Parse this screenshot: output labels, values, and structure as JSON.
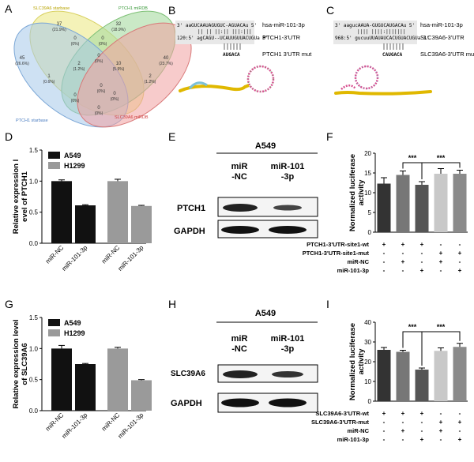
{
  "panel_letters": [
    "A",
    "B",
    "C",
    "D",
    "E",
    "F",
    "G",
    "H",
    "I"
  ],
  "venn": {
    "labels": [
      "SLC39A6 starbase",
      "PTCH1 miRDB",
      "PTCH1 starbase",
      "SLC39A6 miRDB"
    ],
    "regions": [
      {
        "n": "37",
        "p": "(21.9%)"
      },
      {
        "n": "32",
        "p": "(18.9%)"
      },
      {
        "n": "45",
        "p": "(26.6%)"
      },
      {
        "n": "40",
        "p": "(23.7%)"
      },
      {
        "n": "0",
        "p": "(0%)"
      },
      {
        "n": "0",
        "p": "(0%)"
      },
      {
        "n": "1",
        "p": "(0.6%)"
      },
      {
        "n": "2",
        "p": "(1.2%)"
      },
      {
        "n": "2",
        "p": "(1.2%)"
      },
      {
        "n": "10",
        "p": "(5.9%)"
      },
      {
        "n": "0",
        "p": "(0%)"
      },
      {
        "n": "0",
        "p": "(0%)"
      },
      {
        "n": "0",
        "p": "(0%)"
      },
      {
        "n": "0",
        "p": "(0%)"
      },
      {
        "n": "0",
        "p": "(0%)"
      }
    ],
    "colors": [
      "#f0ec9a",
      "#a6dba0",
      "#a6c8ea",
      "#f0a0a0"
    ]
  },
  "panel_b": {
    "seq1": "3' aaGUCAAUAGUGUC-AGUACAu 5'",
    "seq1_label": "hsa-miR-101-3p",
    "pairs": "||  ||  ||:||  |||:|||",
    "seq2": "120:5' agCAGU--UCAUUGUUACUGUa 3'",
    "seq2_label": "PTCH1-3'UTR",
    "mut": "AUGACA",
    "mut_label": "PTCH1 3'UTR mut"
  },
  "panel_c": {
    "seq1": "3' aagucAAUA-GUGUCAUGACAu 5'",
    "seq1_label": "hsa-miR-101-3p",
    "pairs": "||||  ||||:|||||||",
    "seq2": "968:5' gucuuUUAUAUCACUGUACUGUa 3'",
    "seq2_label": "SLC39A6-3'UTR",
    "mut": "CAUGACA",
    "mut_label": "SLC39A6-3'UTR mut"
  },
  "chart_data": [
    {
      "panel": "D",
      "type": "bar",
      "categories": [
        "miR-NC",
        "miR-101-3p",
        "miR-NC",
        "miR-101-3p"
      ],
      "series": [
        {
          "name": "A549",
          "values": [
            1.0,
            0.61,
            null,
            null
          ]
        },
        {
          "name": "H1299",
          "values": [
            null,
            null,
            1.0,
            0.6
          ]
        }
      ],
      "errors": [
        0.02,
        0.01,
        0.03,
        0.01
      ],
      "ylabel": "Relative expression l evel of PTCH1",
      "ylim": [
        0,
        1.5
      ],
      "yticks": [
        "0.0",
        "0.5",
        "1.0",
        "1.5"
      ],
      "legend": [
        "A549",
        "H1299"
      ]
    },
    {
      "panel": "F",
      "type": "bar",
      "values": [
        12.3,
        14.5,
        12.0,
        14.8,
        14.8
      ],
      "errors": [
        1.5,
        1.0,
        0.8,
        1.3,
        0.9
      ],
      "ylabel": "Normalized luciferase activity",
      "ylim": [
        0,
        20
      ],
      "yticks": [
        "0",
        "5",
        "10",
        "15",
        "20"
      ],
      "significance": [
        "***",
        "***"
      ],
      "conditions": [
        {
          "label": "PTCH1-3'UTR-site1-wt",
          "signs": [
            "+",
            "+",
            "+",
            "-",
            "-"
          ]
        },
        {
          "label": "PTCH1-3'UTR-site1-mut",
          "signs": [
            "-",
            "-",
            "-",
            "+",
            "+"
          ]
        },
        {
          "label": "miR-NC",
          "signs": [
            "-",
            "+",
            "-",
            "+",
            "-"
          ]
        },
        {
          "label": "miR-101-3p",
          "signs": [
            "-",
            "-",
            "+",
            "-",
            "+"
          ]
        }
      ]
    },
    {
      "panel": "G",
      "type": "bar",
      "categories": [
        "miR-NC",
        "miR-101-3p",
        "miR-NC",
        "miR-101-3p"
      ],
      "series": [
        {
          "name": "A549",
          "values": [
            1.0,
            0.75,
            null,
            null
          ]
        },
        {
          "name": "H1299",
          "values": [
            null,
            null,
            1.0,
            0.49
          ]
        }
      ],
      "errors": [
        0.05,
        0.01,
        0.02,
        0.01
      ],
      "ylabel": "Relative expression level of SLC39A6",
      "ylim": [
        0,
        1.5
      ],
      "yticks": [
        "0.0",
        "0.5",
        "1.0",
        "1.5"
      ],
      "legend": [
        "A549",
        "H1299"
      ]
    },
    {
      "panel": "I",
      "type": "bar",
      "values": [
        26,
        25,
        16,
        25.5,
        27.5
      ],
      "errors": [
        1.2,
        0.8,
        0.8,
        1.5,
        1.8
      ],
      "ylabel": "Normalized luciferase activity",
      "ylim": [
        0,
        40
      ],
      "yticks": [
        "0",
        "10",
        "20",
        "30",
        "40"
      ],
      "significance": [
        "***",
        "***"
      ],
      "conditions": [
        {
          "label": "SLC39A6-3'UTR-wt",
          "signs": [
            "+",
            "+",
            "+",
            "-",
            "-"
          ]
        },
        {
          "label": "SLC39A6-3'UTR-mut",
          "signs": [
            "-",
            "-",
            "-",
            "+",
            "+"
          ]
        },
        {
          "label": "miR-NC",
          "signs": [
            "-",
            "+",
            "-",
            "+",
            "-"
          ]
        },
        {
          "label": "miR-101-3p",
          "signs": [
            "-",
            "-",
            "+",
            "-",
            "+"
          ]
        }
      ]
    }
  ],
  "blot_e": {
    "cell_line": "A549",
    "lanes": [
      "miR\n-NC",
      "miR-101\n-3p"
    ],
    "proteins": [
      "PTCH1",
      "GAPDH"
    ]
  },
  "blot_h": {
    "cell_line": "A549",
    "lanes": [
      "miR\n-NC",
      "miR-101\n-3p"
    ],
    "proteins": [
      "SLC39A6",
      "GAPDH"
    ]
  },
  "colors": {
    "a549": "#111111",
    "h1299": "#9a9a9a",
    "f_bars": [
      "#333333",
      "#777777",
      "#555555",
      "#c8c8c8",
      "#8a8a8a"
    ],
    "i_bars": [
      "#333333",
      "#777777",
      "#555555",
      "#c8c8c8",
      "#8a8a8a"
    ]
  }
}
